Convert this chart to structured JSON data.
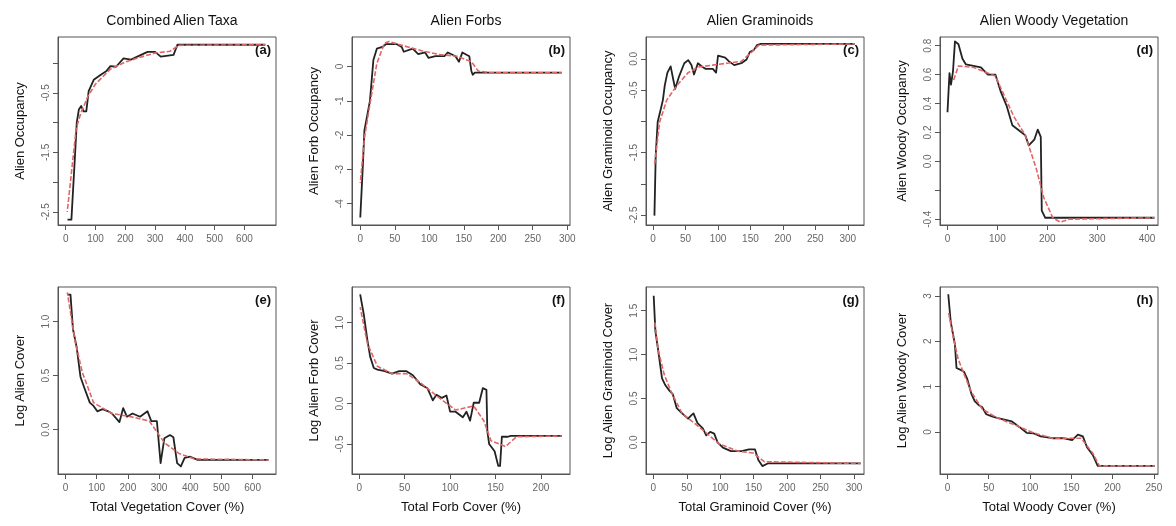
{
  "chart_data": [
    {
      "type": "line",
      "title": "Combined Alien Taxa",
      "ylabel": "Alien Occupancy",
      "annotations": [
        "(a)"
      ],
      "marker": "none",
      "grid": false,
      "xlim": [
        -26,
        706
      ],
      "xticks": [
        0,
        100,
        200,
        300,
        400,
        500,
        600
      ],
      "ylim": [
        -2.72,
        0.44
      ],
      "yticks": [
        -2.5,
        {
          "value": -2,
          "label": null
        },
        -1.5,
        {
          "value": -1,
          "label": null
        },
        -0.5,
        {
          "value": 0,
          "label": null
        }
      ],
      "series": [
        {
          "color": "#222222",
          "line_style": "solid",
          "x": [
            6,
            19,
            31,
            37,
            44,
            52,
            60,
            69,
            77,
            94,
            119,
            137,
            150,
            169,
            194,
            219,
            262,
            275,
            300,
            319,
            362,
            375,
            670
          ],
          "values": [
            -2.63,
            -2.63,
            -1.56,
            -1.0,
            -0.78,
            -0.72,
            -0.81,
            -0.81,
            -0.47,
            -0.28,
            -0.19,
            -0.13,
            -0.05,
            -0.06,
            0.08,
            0.06,
            0.16,
            0.19,
            0.19,
            0.11,
            0.14,
            0.31,
            0.31
          ]
        },
        {
          "color": "#e06666",
          "line_style": "dashed",
          "x": [
            5,
            20,
            35,
            50,
            75,
            100,
            150,
            200,
            250,
            300,
            350,
            380,
            670
          ],
          "values": [
            -2.5,
            -1.8,
            -1.1,
            -0.85,
            -0.55,
            -0.35,
            -0.1,
            0.02,
            0.1,
            0.17,
            0.2,
            0.3,
            0.31
          ]
        }
      ]
    },
    {
      "type": "line",
      "title": "Alien Forbs",
      "ylabel": "Alien Forb Occupancy",
      "annotations": [
        "(b)"
      ],
      "marker": "none",
      "grid": false,
      "xlim": [
        -12,
        304
      ],
      "xticks": [
        0,
        50,
        100,
        150,
        200,
        250,
        300
      ],
      "ylim": [
        -4.62,
        0.86
      ],
      "yticks": [
        -4,
        -3,
        -2,
        -1,
        0
      ],
      "series": [
        {
          "color": "#222222",
          "line_style": "solid",
          "x": [
            0,
            3.6,
            6,
            14,
            19,
            24,
            32,
            37,
            53,
            60,
            63,
            76,
            84,
            94,
            99,
            109,
            122,
            127,
            138,
            143,
            148,
            158,
            161,
            163,
            166,
            292
          ],
          "values": [
            -4.4,
            -2.94,
            -1.86,
            -1.0,
            0.19,
            0.52,
            0.57,
            0.65,
            0.65,
            0.57,
            0.43,
            0.52,
            0.36,
            0.41,
            0.25,
            0.3,
            0.3,
            0.41,
            0.3,
            0.14,
            0.41,
            0.3,
            -0.13,
            -0.24,
            -0.18,
            -0.18
          ]
        },
        {
          "color": "#e06666",
          "line_style": "dashed",
          "x": [
            0,
            6,
            14,
            24,
            35,
            42,
            58,
            89,
            114,
            140,
            161,
            171,
            187,
            292
          ],
          "values": [
            -3.4,
            -2.08,
            -1.1,
            0.09,
            0.68,
            0.73,
            0.63,
            0.46,
            0.35,
            0.3,
            0.14,
            -0.13,
            -0.18,
            -0.18
          ]
        }
      ]
    },
    {
      "type": "line",
      "title": "Alien Graminoids",
      "ylabel": "Alien Graminoid Occupancy",
      "annotations": [
        "(c)"
      ],
      "marker": "none",
      "grid": false,
      "xlim": [
        -11,
        325
      ],
      "xticks": [
        0,
        50,
        100,
        150,
        200,
        250,
        300
      ],
      "ylim": [
        -2.66,
        0.35
      ],
      "yticks": [
        -2.5,
        {
          "value": -2,
          "label": null
        },
        -1.5,
        {
          "value": -1,
          "label": null
        },
        -0.5,
        {
          "value": 0,
          "label": "0.0"
        }
      ],
      "series": [
        {
          "color": "#222222",
          "line_style": "solid",
          "x": [
            2,
            4,
            7,
            13,
            15,
            18,
            22,
            27,
            31,
            34,
            40,
            48,
            54,
            59,
            63,
            69,
            76,
            81,
            92,
            97,
            100,
            111,
            117,
            125,
            136,
            144,
            149,
            155,
            160,
            166,
            311
          ],
          "values": [
            -2.51,
            -1.54,
            -1.01,
            -0.75,
            -0.66,
            -0.42,
            -0.22,
            -0.12,
            -0.33,
            -0.48,
            -0.28,
            -0.07,
            -0.02,
            -0.1,
            -0.25,
            -0.07,
            -0.13,
            -0.16,
            -0.16,
            -0.22,
            0.05,
            0.02,
            -0.04,
            -0.1,
            -0.07,
            -0.01,
            0.11,
            0.14,
            0.22,
            0.24,
            0.24
          ]
        },
        {
          "color": "#e06666",
          "line_style": "dashed",
          "x": [
            2,
            10,
            21,
            37,
            54,
            70,
            92,
            114,
            136,
            152,
            163,
            311
          ],
          "values": [
            -1.72,
            -1.01,
            -0.66,
            -0.42,
            -0.22,
            -0.13,
            -0.1,
            -0.07,
            -0.04,
            0.11,
            0.22,
            0.24
          ]
        }
      ]
    },
    {
      "type": "line",
      "title": "Alien Woody Vegetation",
      "ylabel": "Alien Woody Occupancy",
      "annotations": [
        "(d)"
      ],
      "marker": "none",
      "grid": false,
      "xlim": [
        -15,
        422
      ],
      "xticks": [
        0,
        100,
        200,
        300,
        400
      ],
      "ylim": [
        -0.44,
        0.86
      ],
      "yticks": [
        {
          "value": -0.4,
          "label": "-0.4"
        },
        {
          "value": -0.2,
          "label": null
        },
        {
          "value": 0,
          "label": "0.0"
        },
        0.2,
        0.4,
        0.6,
        0.8
      ],
      "series": [
        {
          "color": "#222222",
          "line_style": "solid",
          "x": [
            0,
            4,
            7,
            11,
            15,
            22,
            30,
            37,
            52,
            67,
            81,
            96,
            107,
            119,
            130,
            141,
            156,
            163,
            174,
            181,
            187,
            189,
            196,
            215,
            415
          ],
          "values": [
            0.34,
            0.61,
            0.53,
            0.62,
            0.83,
            0.81,
            0.71,
            0.67,
            0.66,
            0.65,
            0.6,
            0.6,
            0.48,
            0.38,
            0.25,
            0.22,
            0.18,
            0.11,
            0.15,
            0.22,
            0.17,
            -0.34,
            -0.39,
            -0.39,
            -0.39
          ]
        },
        {
          "color": "#e06666",
          "line_style": "dashed",
          "x": [
            11,
            22,
            52,
            96,
            133,
            156,
            178,
            193,
            211,
            226,
            244,
            415
          ],
          "values": [
            0.55,
            0.66,
            0.65,
            0.59,
            0.31,
            0.18,
            -0.05,
            -0.25,
            -0.39,
            -0.42,
            -0.4,
            -0.39
          ]
        }
      ]
    },
    {
      "type": "line",
      "xlabel": "Total Vegetation Cover (%)",
      "ylabel": "Log Alien Cover",
      "annotations": [
        "(e)"
      ],
      "marker": "none",
      "grid": false,
      "xlim": [
        -24,
        675
      ],
      "xticks": [
        0,
        100,
        200,
        300,
        400,
        500,
        600
      ],
      "ylim": [
        -0.41,
        1.32
      ],
      "yticks": [
        {
          "value": 0,
          "label": "0.0"
        },
        0.5,
        {
          "value": 1,
          "label": "1.0"
        }
      ],
      "series": [
        {
          "color": "#222222",
          "line_style": "solid",
          "x": [
            6,
            16,
            24,
            36,
            48,
            60,
            78,
            90,
            102,
            119,
            137,
            149,
            173,
            185,
            197,
            215,
            239,
            263,
            275,
            293,
            305,
            317,
            335,
            346,
            358,
            370,
            382,
            400,
            424,
            651
          ],
          "values": [
            1.25,
            1.25,
            0.93,
            0.76,
            0.49,
            0.39,
            0.25,
            0.22,
            0.17,
            0.19,
            0.17,
            0.15,
            0.07,
            0.2,
            0.12,
            0.15,
            0.12,
            0.17,
            0.08,
            0.08,
            -0.31,
            -0.08,
            -0.05,
            -0.07,
            -0.31,
            -0.34,
            -0.26,
            -0.25,
            -0.28,
            -0.28
          ]
        },
        {
          "color": "#e06666",
          "line_style": "dashed",
          "x": [
            6,
            30,
            54,
            90,
            149,
            209,
            269,
            317,
            364,
            412,
            651
          ],
          "values": [
            1.27,
            0.83,
            0.53,
            0.25,
            0.15,
            0.12,
            0.08,
            -0.12,
            -0.22,
            -0.27,
            -0.28
          ]
        }
      ]
    },
    {
      "type": "line",
      "xlabel": "Total Forb Cover (%)",
      "ylabel": "Log Alien Forb Cover",
      "annotations": [
        "(f)"
      ],
      "marker": "none",
      "grid": false,
      "xlim": [
        -8,
        232
      ],
      "xticks": [
        0,
        50,
        100,
        150,
        200
      ],
      "ylim": [
        -0.87,
        1.44
      ],
      "yticks": [
        -0.5,
        {
          "value": 0,
          "label": "0.0"
        },
        0.5,
        {
          "value": 1,
          "label": "1.0"
        }
      ],
      "series": [
        {
          "color": "#222222",
          "line_style": "solid",
          "x": [
            1,
            5,
            9,
            12,
            16,
            20,
            28,
            36,
            44,
            52,
            59,
            67,
            75,
            81,
            85,
            91,
            96,
            100,
            106,
            114,
            118,
            122,
            126,
            132,
            136,
            140,
            141,
            143,
            149,
            153,
            155,
            157,
            163,
            167,
            223
          ],
          "values": [
            1.35,
            1.1,
            0.78,
            0.58,
            0.44,
            0.42,
            0.4,
            0.37,
            0.4,
            0.4,
            0.35,
            0.24,
            0.19,
            0.04,
            0.11,
            0.07,
            0.1,
            -0.1,
            -0.1,
            -0.17,
            -0.1,
            -0.21,
            0.01,
            0.01,
            0.19,
            0.17,
            -0.34,
            -0.5,
            -0.59,
            -0.77,
            -0.77,
            -0.41,
            -0.41,
            -0.4,
            -0.4
          ]
        },
        {
          "color": "#e06666",
          "line_style": "dashed",
          "x": [
            1,
            9,
            20,
            36,
            52,
            67,
            87,
            106,
            126,
            137,
            145,
            161,
            173,
            223
          ],
          "values": [
            1.19,
            0.74,
            0.46,
            0.37,
            0.37,
            0.26,
            0.08,
            -0.08,
            -0.03,
            -0.21,
            -0.46,
            -0.53,
            -0.41,
            -0.4
          ]
        }
      ]
    },
    {
      "type": "line",
      "xlabel": "Total Graminoid Cover (%)",
      "ylabel": "Log Alien Graminoid Cover",
      "annotations": [
        "(g)"
      ],
      "marker": "none",
      "grid": false,
      "xlim": [
        -11,
        315
      ],
      "xticks": [
        0,
        50,
        100,
        150,
        200,
        250,
        300
      ],
      "ylim": [
        -0.36,
        1.77
      ],
      "yticks": [
        {
          "value": 0,
          "label": "0.0"
        },
        0.5,
        {
          "value": 1,
          "label": "1.0"
        },
        1.5
      ],
      "series": [
        {
          "color": "#222222",
          "line_style": "solid",
          "x": [
            0.5,
            3,
            7,
            13,
            18,
            24,
            29,
            35,
            43,
            52,
            57,
            60,
            66,
            74,
            79,
            85,
            91,
            96,
            104,
            116,
            132,
            143,
            152,
            157,
            163,
            171,
            310
          ],
          "values": [
            1.67,
            1.27,
            1.06,
            0.73,
            0.65,
            0.59,
            0.55,
            0.39,
            0.33,
            0.27,
            0.31,
            0.33,
            0.22,
            0.16,
            0.08,
            0.12,
            0.1,
            0,
            -0.06,
            -0.1,
            -0.1,
            -0.08,
            -0.08,
            -0.2,
            -0.27,
            -0.24,
            -0.24
          ]
        },
        {
          "color": "#e06666",
          "line_style": "dashed",
          "x": [
            2,
            7,
            16,
            27,
            43,
            71,
            99,
            127,
            149,
            166,
            310
          ],
          "values": [
            1.39,
            1.06,
            0.78,
            0.57,
            0.33,
            0.16,
            -0.02,
            -0.1,
            -0.12,
            -0.22,
            -0.24
          ]
        }
      ]
    },
    {
      "type": "line",
      "xlabel": "Total Woody Cover (%)",
      "ylabel": "Log Alien Woody Cover",
      "annotations": [
        "(h)"
      ],
      "marker": "none",
      "grid": false,
      "xlim": [
        -9,
        255
      ],
      "xticks": [
        0,
        50,
        100,
        150,
        200,
        250
      ],
      "ylim": [
        -0.93,
        3.2
      ],
      "yticks": [
        0,
        1,
        2,
        3
      ],
      "series": [
        {
          "color": "#222222",
          "line_style": "solid",
          "x": [
            1,
            4,
            9,
            11,
            16,
            20,
            24,
            29,
            33,
            38,
            42,
            47,
            53,
            60,
            69,
            78,
            87,
            96,
            104,
            113,
            127,
            140,
            151,
            158,
            164,
            169,
            176,
            182,
            189,
            251
          ],
          "values": [
            3.04,
            2.43,
            1.94,
            1.41,
            1.37,
            1.33,
            1.17,
            0.84,
            0.68,
            0.59,
            0.55,
            0.39,
            0.35,
            0.31,
            0.27,
            0.23,
            0.11,
            -0.02,
            -0.03,
            -0.1,
            -0.14,
            -0.14,
            -0.18,
            -0.06,
            -0.1,
            -0.34,
            -0.51,
            -0.75,
            -0.75,
            -0.75
          ]
        },
        {
          "color": "#e06666",
          "line_style": "dashed",
          "x": [
            1,
            7,
            13,
            20,
            29,
            42,
            60,
            82,
            104,
            127,
            149,
            162,
            176,
            184,
            251
          ],
          "values": [
            2.67,
            2.1,
            1.61,
            1.28,
            0.88,
            0.51,
            0.31,
            0.15,
            -0.02,
            -0.14,
            -0.14,
            -0.14,
            -0.47,
            -0.75,
            -0.75
          ]
        }
      ]
    }
  ]
}
